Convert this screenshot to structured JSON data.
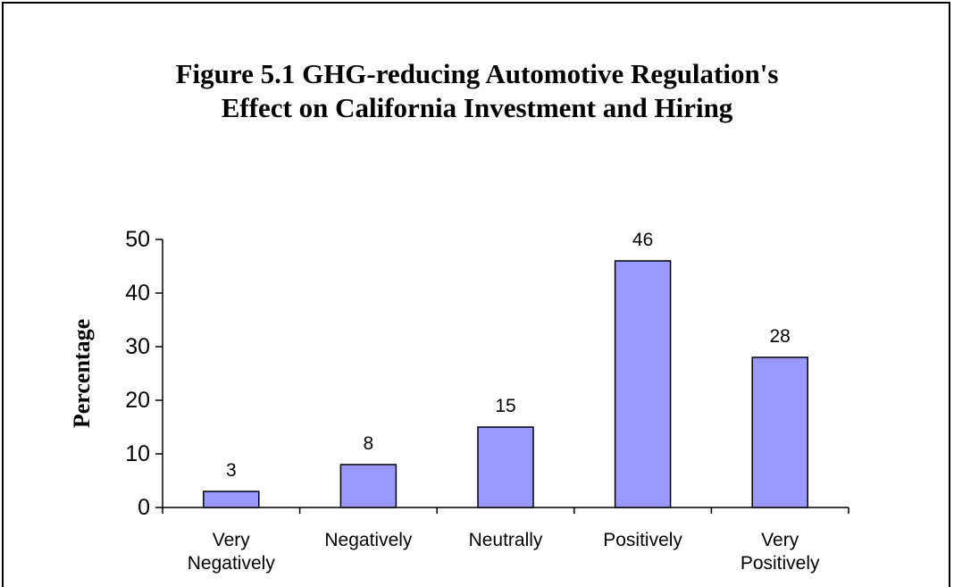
{
  "chart_data": {
    "type": "bar",
    "title": "Figure 5.1 GHG-reducing Automotive Regulation's Effect on California Investment and Hiring",
    "y_label": "Percentage",
    "categories": [
      "Very Negatively",
      "Negatively",
      "Neutrally",
      "Positively",
      "Very Positively"
    ],
    "values": [
      3,
      8,
      15,
      46,
      28
    ],
    "color": "#9999ff",
    "ylim": [
      0,
      50
    ],
    "yticks": [
      0,
      10,
      20,
      30,
      40,
      50
    ],
    "grid": false
  }
}
